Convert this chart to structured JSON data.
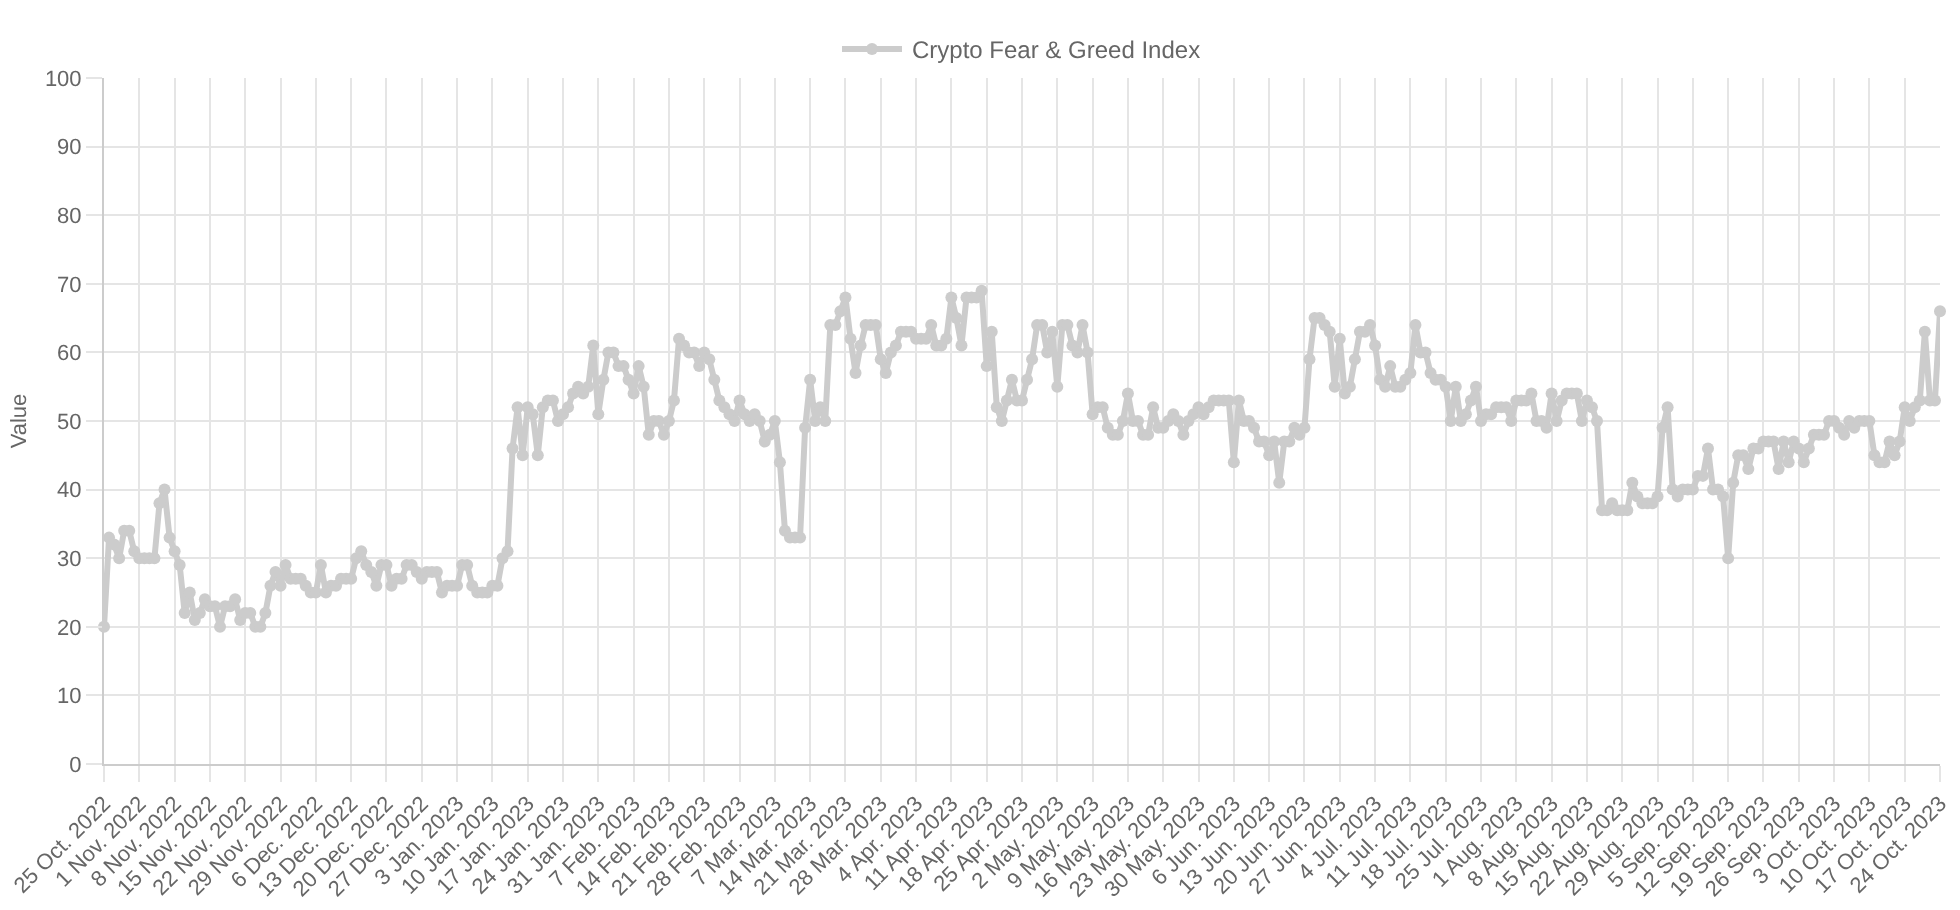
{
  "chart_data": {
    "type": "line",
    "ylabel": "Value",
    "legend": "top",
    "grid": true,
    "marker": "circle",
    "line_style": "solid",
    "xlim": [
      "2022-10-25",
      "2023-10-24"
    ],
    "ylim": [
      0,
      100
    ],
    "yticks": [
      0,
      10,
      20,
      30,
      40,
      50,
      60,
      70,
      80,
      90,
      100
    ],
    "xticks": [
      {
        "value": "2022-10-25",
        "label": "25 Oct. 2022"
      },
      {
        "value": "2022-11-01",
        "label": "1 Nov. 2022"
      },
      {
        "value": "2022-11-08",
        "label": "8 Nov. 2022"
      },
      {
        "value": "2022-11-15",
        "label": "15 Nov. 2022"
      },
      {
        "value": "2022-11-22",
        "label": "22 Nov. 2022"
      },
      {
        "value": "2022-11-29",
        "label": "29 Nov. 2022"
      },
      {
        "value": "2022-12-06",
        "label": "6 Dec. 2022"
      },
      {
        "value": "2022-12-13",
        "label": "13 Dec. 2022"
      },
      {
        "value": "2022-12-20",
        "label": "20 Dec. 2022"
      },
      {
        "value": "2022-12-27",
        "label": "27 Dec. 2022"
      },
      {
        "value": "2023-01-03",
        "label": "3 Jan. 2023"
      },
      {
        "value": "2023-01-10",
        "label": "10 Jan. 2023"
      },
      {
        "value": "2023-01-17",
        "label": "17 Jan. 2023"
      },
      {
        "value": "2023-01-24",
        "label": "24 Jan. 2023"
      },
      {
        "value": "2023-01-31",
        "label": "31 Jan. 2023"
      },
      {
        "value": "2023-02-07",
        "label": "7 Feb. 2023"
      },
      {
        "value": "2023-02-14",
        "label": "14 Feb. 2023"
      },
      {
        "value": "2023-02-21",
        "label": "21 Feb. 2023"
      },
      {
        "value": "2023-02-28",
        "label": "28 Feb. 2023"
      },
      {
        "value": "2023-03-07",
        "label": "7 Mar. 2023"
      },
      {
        "value": "2023-03-14",
        "label": "14 Mar. 2023"
      },
      {
        "value": "2023-03-21",
        "label": "21 Mar. 2023"
      },
      {
        "value": "2023-03-28",
        "label": "28 Mar. 2023"
      },
      {
        "value": "2023-04-04",
        "label": "4 Apr. 2023"
      },
      {
        "value": "2023-04-11",
        "label": "11 Apr. 2023"
      },
      {
        "value": "2023-04-18",
        "label": "18 Apr. 2023"
      },
      {
        "value": "2023-04-25",
        "label": "25 Apr. 2023"
      },
      {
        "value": "2023-05-02",
        "label": "2 May. 2023"
      },
      {
        "value": "2023-05-09",
        "label": "9 May. 2023"
      },
      {
        "value": "2023-05-16",
        "label": "16 May. 2023"
      },
      {
        "value": "2023-05-23",
        "label": "23 May. 2023"
      },
      {
        "value": "2023-05-30",
        "label": "30 May. 2023"
      },
      {
        "value": "2023-06-06",
        "label": "6 Jun. 2023"
      },
      {
        "value": "2023-06-13",
        "label": "13 Jun. 2023"
      },
      {
        "value": "2023-06-20",
        "label": "20 Jun. 2023"
      },
      {
        "value": "2023-06-27",
        "label": "27 Jun. 2023"
      },
      {
        "value": "2023-07-04",
        "label": "4 Jul. 2023"
      },
      {
        "value": "2023-07-11",
        "label": "11 Jul. 2023"
      },
      {
        "value": "2023-07-18",
        "label": "18 Jul. 2023"
      },
      {
        "value": "2023-07-25",
        "label": "25 Jul. 2023"
      },
      {
        "value": "2023-08-01",
        "label": "1 Aug. 2023"
      },
      {
        "value": "2023-08-08",
        "label": "8 Aug. 2023"
      },
      {
        "value": "2023-08-15",
        "label": "15 Aug. 2023"
      },
      {
        "value": "2023-08-22",
        "label": "22 Aug. 2023"
      },
      {
        "value": "2023-08-29",
        "label": "29 Aug. 2023"
      },
      {
        "value": "2023-09-05",
        "label": "5 Sep. 2023"
      },
      {
        "value": "2023-09-12",
        "label": "12 Sep. 2023"
      },
      {
        "value": "2023-09-19",
        "label": "19 Sep. 2023"
      },
      {
        "value": "2023-09-26",
        "label": "26 Sep. 2023"
      },
      {
        "value": "2023-10-03",
        "label": "3 Oct. 2023"
      },
      {
        "value": "2023-10-10",
        "label": "10 Oct. 2023"
      },
      {
        "value": "2023-10-17",
        "label": "17 Oct. 2023"
      },
      {
        "value": "2023-10-24",
        "label": "24 Oct. 2023"
      }
    ],
    "x": [
      "2022-10-25",
      "2022-10-26",
      "2022-10-27",
      "2022-10-28",
      "2022-10-29",
      "2022-10-30",
      "2022-10-31",
      "2022-11-01",
      "2022-11-02",
      "2022-11-03",
      "2022-11-04",
      "2022-11-05",
      "2022-11-06",
      "2022-11-07",
      "2022-11-08",
      "2022-11-09",
      "2022-11-10",
      "2022-11-11",
      "2022-11-12",
      "2022-11-13",
      "2022-11-14",
      "2022-11-15",
      "2022-11-16",
      "2022-11-17",
      "2022-11-18",
      "2022-11-19",
      "2022-11-20",
      "2022-11-21",
      "2022-11-22",
      "2022-11-23",
      "2022-11-24",
      "2022-11-25",
      "2022-11-26",
      "2022-11-27",
      "2022-11-28",
      "2022-11-29",
      "2022-11-30",
      "2022-12-01",
      "2022-12-02",
      "2022-12-03",
      "2022-12-04",
      "2022-12-05",
      "2022-12-06",
      "2022-12-07",
      "2022-12-08",
      "2022-12-09",
      "2022-12-10",
      "2022-12-11",
      "2022-12-12",
      "2022-12-13",
      "2022-12-14",
      "2022-12-15",
      "2022-12-16",
      "2022-12-17",
      "2022-12-18",
      "2022-12-19",
      "2022-12-20",
      "2022-12-21",
      "2022-12-22",
      "2022-12-23",
      "2022-12-24",
      "2022-12-25",
      "2022-12-26",
      "2022-12-27",
      "2022-12-28",
      "2022-12-29",
      "2022-12-30",
      "2022-12-31",
      "2023-01-01",
      "2023-01-02",
      "2023-01-03",
      "2023-01-04",
      "2023-01-05",
      "2023-01-06",
      "2023-01-07",
      "2023-01-08",
      "2023-01-09",
      "2023-01-10",
      "2023-01-11",
      "2023-01-12",
      "2023-01-13",
      "2023-01-14",
      "2023-01-15",
      "2023-01-16",
      "2023-01-17",
      "2023-01-18",
      "2023-01-19",
      "2023-01-20",
      "2023-01-21",
      "2023-01-22",
      "2023-01-23",
      "2023-01-24",
      "2023-01-25",
      "2023-01-26",
      "2023-01-27",
      "2023-01-28",
      "2023-01-29",
      "2023-01-30",
      "2023-01-31",
      "2023-02-01",
      "2023-02-02",
      "2023-02-03",
      "2023-02-04",
      "2023-02-05",
      "2023-02-06",
      "2023-02-07",
      "2023-02-08",
      "2023-02-09",
      "2023-02-10",
      "2023-02-11",
      "2023-02-12",
      "2023-02-13",
      "2023-02-14",
      "2023-02-15",
      "2023-02-16",
      "2023-02-17",
      "2023-02-18",
      "2023-02-19",
      "2023-02-20",
      "2023-02-21",
      "2023-02-22",
      "2023-02-23",
      "2023-02-24",
      "2023-02-25",
      "2023-02-26",
      "2023-02-27",
      "2023-02-28",
      "2023-03-01",
      "2023-03-02",
      "2023-03-03",
      "2023-03-04",
      "2023-03-05",
      "2023-03-06",
      "2023-03-07",
      "2023-03-08",
      "2023-03-09",
      "2023-03-10",
      "2023-03-11",
      "2023-03-12",
      "2023-03-13",
      "2023-03-14",
      "2023-03-15",
      "2023-03-16",
      "2023-03-17",
      "2023-03-18",
      "2023-03-19",
      "2023-03-20",
      "2023-03-21",
      "2023-03-22",
      "2023-03-23",
      "2023-03-24",
      "2023-03-25",
      "2023-03-26",
      "2023-03-27",
      "2023-03-28",
      "2023-03-29",
      "2023-03-30",
      "2023-03-31",
      "2023-04-01",
      "2023-04-02",
      "2023-04-03",
      "2023-04-04",
      "2023-04-05",
      "2023-04-06",
      "2023-04-07",
      "2023-04-08",
      "2023-04-09",
      "2023-04-10",
      "2023-04-11",
      "2023-04-12",
      "2023-04-13",
      "2023-04-14",
      "2023-04-15",
      "2023-04-16",
      "2023-04-17",
      "2023-04-18",
      "2023-04-19",
      "2023-04-20",
      "2023-04-21",
      "2023-04-22",
      "2023-04-23",
      "2023-04-24",
      "2023-04-25",
      "2023-04-26",
      "2023-04-27",
      "2023-04-28",
      "2023-04-29",
      "2023-04-30",
      "2023-05-01",
      "2023-05-02",
      "2023-05-03",
      "2023-05-04",
      "2023-05-05",
      "2023-05-06",
      "2023-05-07",
      "2023-05-08",
      "2023-05-09",
      "2023-05-10",
      "2023-05-11",
      "2023-05-12",
      "2023-05-13",
      "2023-05-14",
      "2023-05-15",
      "2023-05-16",
      "2023-05-17",
      "2023-05-18",
      "2023-05-19",
      "2023-05-20",
      "2023-05-21",
      "2023-05-22",
      "2023-05-23",
      "2023-05-24",
      "2023-05-25",
      "2023-05-26",
      "2023-05-27",
      "2023-05-28",
      "2023-05-29",
      "2023-05-30",
      "2023-05-31",
      "2023-06-01",
      "2023-06-02",
      "2023-06-03",
      "2023-06-04",
      "2023-06-05",
      "2023-06-06",
      "2023-06-07",
      "2023-06-08",
      "2023-06-09",
      "2023-06-10",
      "2023-06-11",
      "2023-06-12",
      "2023-06-13",
      "2023-06-14",
      "2023-06-15",
      "2023-06-16",
      "2023-06-17",
      "2023-06-18",
      "2023-06-19",
      "2023-06-20",
      "2023-06-21",
      "2023-06-22",
      "2023-06-23",
      "2023-06-24",
      "2023-06-25",
      "2023-06-26",
      "2023-06-27",
      "2023-06-28",
      "2023-06-29",
      "2023-06-30",
      "2023-07-01",
      "2023-07-02",
      "2023-07-03",
      "2023-07-04",
      "2023-07-05",
      "2023-07-06",
      "2023-07-07",
      "2023-07-08",
      "2023-07-09",
      "2023-07-10",
      "2023-07-11",
      "2023-07-12",
      "2023-07-13",
      "2023-07-14",
      "2023-07-15",
      "2023-07-16",
      "2023-07-17",
      "2023-07-18",
      "2023-07-19",
      "2023-07-20",
      "2023-07-21",
      "2023-07-22",
      "2023-07-23",
      "2023-07-24",
      "2023-07-25",
      "2023-07-26",
      "2023-07-27",
      "2023-07-28",
      "2023-07-29",
      "2023-07-30",
      "2023-07-31",
      "2023-08-01",
      "2023-08-02",
      "2023-08-03",
      "2023-08-04",
      "2023-08-05",
      "2023-08-06",
      "2023-08-07",
      "2023-08-08",
      "2023-08-09",
      "2023-08-10",
      "2023-08-11",
      "2023-08-12",
      "2023-08-13",
      "2023-08-14",
      "2023-08-15",
      "2023-08-16",
      "2023-08-17",
      "2023-08-18",
      "2023-08-19",
      "2023-08-20",
      "2023-08-21",
      "2023-08-22",
      "2023-08-23",
      "2023-08-24",
      "2023-08-25",
      "2023-08-26",
      "2023-08-27",
      "2023-08-28",
      "2023-08-29",
      "2023-08-30",
      "2023-08-31",
      "2023-09-01",
      "2023-09-02",
      "2023-09-03",
      "2023-09-04",
      "2023-09-05",
      "2023-09-06",
      "2023-09-07",
      "2023-09-08",
      "2023-09-09",
      "2023-09-10",
      "2023-09-11",
      "2023-09-12",
      "2023-09-13",
      "2023-09-14",
      "2023-09-15",
      "2023-09-16",
      "2023-09-17",
      "2023-09-18",
      "2023-09-19",
      "2023-09-20",
      "2023-09-21",
      "2023-09-22",
      "2023-09-23",
      "2023-09-24",
      "2023-09-25",
      "2023-09-26",
      "2023-09-27",
      "2023-09-28",
      "2023-09-29",
      "2023-09-30",
      "2023-10-01",
      "2023-10-02",
      "2023-10-03",
      "2023-10-04",
      "2023-10-05",
      "2023-10-06",
      "2023-10-07",
      "2023-10-08",
      "2023-10-09",
      "2023-10-10",
      "2023-10-11",
      "2023-10-12",
      "2023-10-13",
      "2023-10-14",
      "2023-10-15",
      "2023-10-16",
      "2023-10-17",
      "2023-10-18",
      "2023-10-19",
      "2023-10-20",
      "2023-10-21",
      "2023-10-22",
      "2023-10-23",
      "2023-10-24"
    ],
    "series": [
      {
        "name": "Crypto Fear & Greed Index",
        "color": "#cccccc",
        "values": [
          20,
          33,
          32,
          30,
          34,
          34,
          31,
          30,
          30,
          30,
          30,
          38,
          40,
          33,
          31,
          29,
          22,
          25,
          21,
          22,
          24,
          23,
          23,
          20,
          23,
          23,
          24,
          21,
          22,
          22,
          20,
          20,
          22,
          26,
          28,
          26,
          29,
          27,
          27,
          27,
          26,
          25,
          25,
          29,
          25,
          26,
          26,
          27,
          27,
          27,
          30,
          31,
          29,
          28,
          26,
          29,
          29,
          26,
          27,
          27,
          29,
          29,
          28,
          27,
          28,
          28,
          28,
          25,
          26,
          26,
          26,
          29,
          29,
          26,
          25,
          25,
          25,
          26,
          26,
          30,
          31,
          46,
          52,
          45,
          52,
          51,
          45,
          52,
          53,
          53,
          50,
          51,
          52,
          54,
          55,
          54,
          55,
          61,
          51,
          56,
          60,
          60,
          58,
          58,
          56,
          54,
          58,
          55,
          48,
          50,
          50,
          48,
          50,
          53,
          62,
          61,
          60,
          60,
          58,
          60,
          59,
          56,
          53,
          52,
          51,
          50,
          53,
          51,
          50,
          51,
          50,
          47,
          48,
          50,
          44,
          34,
          33,
          33,
          33,
          49,
          56,
          50,
          52,
          50,
          64,
          64,
          66,
          68,
          62,
          57,
          61,
          64,
          64,
          64,
          59,
          57,
          60,
          61,
          63,
          63,
          63,
          62,
          62,
          62,
          64,
          61,
          61,
          62,
          68,
          65,
          61,
          68,
          68,
          68,
          69,
          58,
          63,
          52,
          50,
          53,
          56,
          53,
          53,
          56,
          59,
          64,
          64,
          60,
          63,
          55,
          64,
          64,
          61,
          60,
          64,
          60,
          51,
          52,
          52,
          49,
          48,
          48,
          50,
          54,
          50,
          50,
          48,
          48,
          52,
          49,
          49,
          50,
          51,
          50,
          48,
          50,
          51,
          52,
          51,
          52,
          53,
          53,
          53,
          53,
          44,
          53,
          50,
          50,
          49,
          47,
          47,
          45,
          47,
          41,
          47,
          47,
          49,
          48,
          49,
          59,
          65,
          65,
          64,
          63,
          55,
          62,
          54,
          55,
          59,
          63,
          63,
          64,
          61,
          56,
          55,
          58,
          55,
          55,
          56,
          57,
          64,
          60,
          60,
          57,
          56,
          56,
          55,
          50,
          55,
          50,
          51,
          53,
          55,
          50,
          51,
          51,
          52,
          52,
          52,
          50,
          53,
          53,
          53,
          54,
          50,
          50,
          49,
          54,
          50,
          53,
          54,
          54,
          54,
          50,
          53,
          52,
          50,
          37,
          37,
          38,
          37,
          37,
          37,
          41,
          39,
          38,
          38,
          38,
          39,
          49,
          52,
          40,
          39,
          40,
          40,
          40,
          42,
          42,
          46,
          40,
          40,
          39,
          30,
          41,
          45,
          45,
          43,
          46,
          46,
          47,
          47,
          47,
          43,
          47,
          44,
          47,
          46,
          44,
          46,
          48,
          48,
          48,
          50,
          50,
          49,
          48,
          50,
          49,
          50,
          50,
          50,
          45,
          44,
          44,
          47,
          45,
          47,
          52,
          50,
          52,
          53,
          63,
          53,
          53,
          66
        ]
      }
    ]
  }
}
